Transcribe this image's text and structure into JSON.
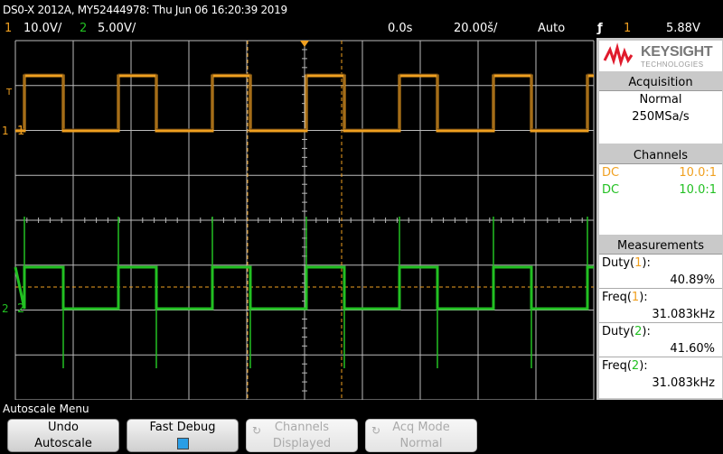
{
  "header": {
    "title": "DS0-X 2012A, MY52444978: Thu Jun 06 16:20:39 2019",
    "ch1_num": "1",
    "ch1_scale": "10.0V/",
    "ch2_num": "2",
    "ch2_scale": "5.00V/",
    "time_delay": "0.0s",
    "time_scale": "20.00š/",
    "trigger_mode": "Auto",
    "trigger_slope": "ƒ",
    "trigger_source": "1",
    "trigger_level": "5.88V"
  },
  "colors": {
    "ch1": "#f0a020",
    "ch2": "#22c022",
    "grid": "#bbbbbb",
    "panel_bg": "#c9c9c9",
    "keysight_red": "#e01a2c"
  },
  "markers": {
    "ch1_label": "1",
    "ch2_label": "2",
    "trigger_label": "T"
  },
  "logo": {
    "brand": "KEYSIGHT",
    "sub": "TECHNOLOGIES"
  },
  "acquisition": {
    "title": "Acquisition",
    "mode": "Normal",
    "rate": "250MSa/s"
  },
  "channels": {
    "title": "Channels",
    "rows": [
      {
        "coupling": "DC",
        "probe": "10.0:1"
      },
      {
        "coupling": "DC",
        "probe": "10.0:1"
      }
    ]
  },
  "measurements": {
    "title": "Measurements",
    "duty1_label": "Duty(",
    "duty1_ch": "1",
    "duty1_close": "):",
    "duty1_value": "40.89%",
    "freq1_label": "Freq(",
    "freq1_ch": "1",
    "freq1_close": "):",
    "freq1_value": "31.083kHz",
    "duty2_label": "Duty(",
    "duty2_ch": "2",
    "duty2_close": "):",
    "duty2_value": "41.60%",
    "freq2_label": "Freq(",
    "freq2_ch": "2",
    "freq2_close": "):",
    "freq2_value": "31.083kHz"
  },
  "menu": {
    "label": "Autoscale Menu",
    "undo_line1": "Undo",
    "undo_line2": "Autoscale",
    "fast_debug": "Fast Debug",
    "channels_line1": "Channels",
    "channels_line2": "Displayed",
    "acq_line1": "Acq Mode",
    "acq_line2": "Normal"
  }
}
